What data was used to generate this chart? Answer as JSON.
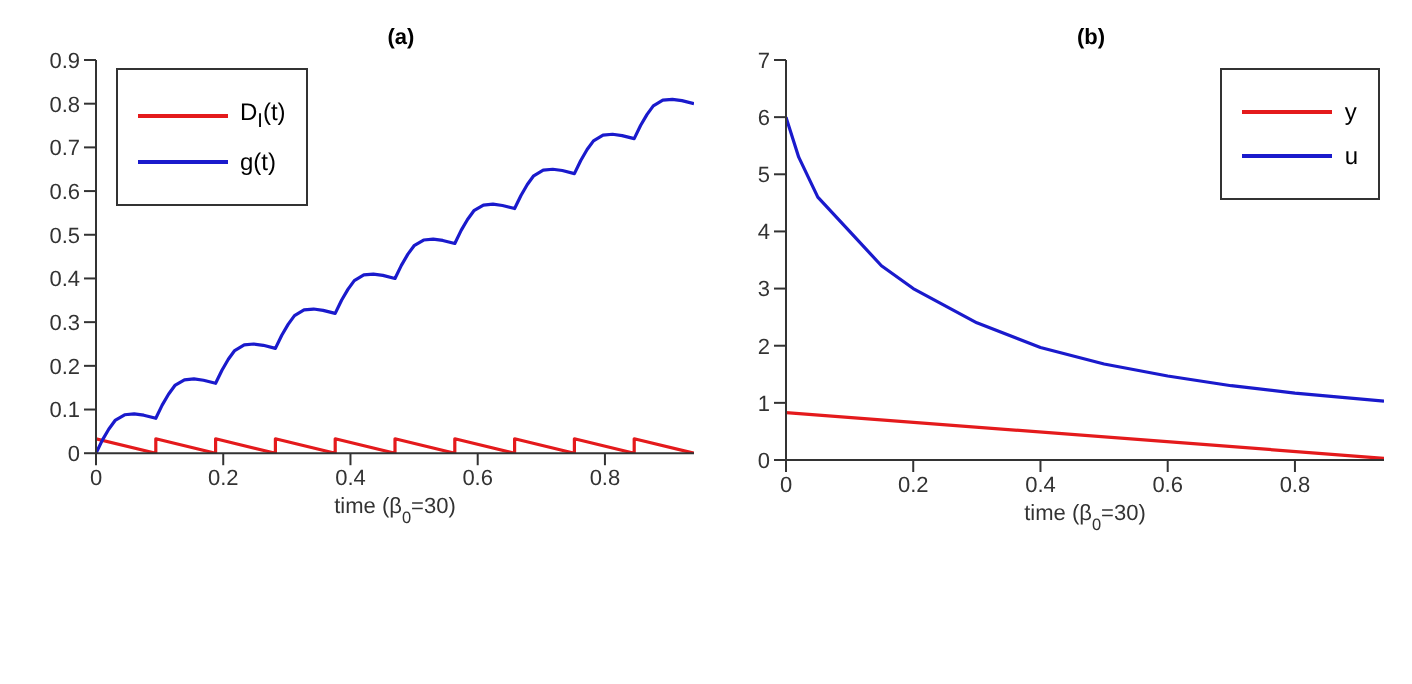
{
  "chart_data": [
    {
      "type": "line",
      "title": "(a)",
      "xlabel": "time (β$_{0}$=30)",
      "xlim": [
        0,
        0.94
      ],
      "xticks": [
        0,
        0.2,
        0.4,
        0.6,
        0.8
      ],
      "ylim": [
        0,
        0.9
      ],
      "yticks": [
        0,
        0.1,
        0.2,
        0.3,
        0.4,
        0.5,
        0.6,
        0.7,
        0.8,
        0.9
      ],
      "legend": "top left",
      "series": [
        {
          "name": "D$_{I}$(t)",
          "color": "#e41a1c",
          "x": [
            0,
            0.094,
            0.094,
            0.188,
            0.188,
            0.282,
            0.282,
            0.376,
            0.376,
            0.47,
            0.47,
            0.564,
            0.564,
            0.658,
            0.658,
            0.752,
            0.752,
            0.846,
            0.846,
            0.94
          ],
          "values": [
            0.033,
            0,
            0.033,
            0,
            0.033,
            0,
            0.033,
            0,
            0.033,
            0,
            0.033,
            0,
            0.033,
            0,
            0.033,
            0,
            0.033,
            0,
            0.033,
            0
          ]
        },
        {
          "name": "g(t)",
          "color": "#1a1acc",
          "x": [
            0,
            0.01,
            0.02,
            0.03,
            0.045,
            0.06,
            0.075,
            0.094,
            0.104,
            0.114,
            0.124,
            0.139,
            0.154,
            0.169,
            0.188,
            0.198,
            0.208,
            0.218,
            0.233,
            0.248,
            0.263,
            0.282,
            0.292,
            0.302,
            0.312,
            0.327,
            0.342,
            0.357,
            0.376,
            0.386,
            0.396,
            0.406,
            0.421,
            0.436,
            0.451,
            0.47,
            0.48,
            0.49,
            0.5,
            0.515,
            0.53,
            0.545,
            0.564,
            0.574,
            0.584,
            0.594,
            0.609,
            0.624,
            0.639,
            0.658,
            0.668,
            0.678,
            0.688,
            0.703,
            0.718,
            0.733,
            0.752,
            0.762,
            0.772,
            0.782,
            0.797,
            0.812,
            0.827,
            0.846,
            0.856,
            0.866,
            0.876,
            0.891,
            0.906,
            0.921,
            0.94
          ],
          "values": [
            0,
            0.03,
            0.055,
            0.075,
            0.088,
            0.09,
            0.087,
            0.08,
            0.11,
            0.135,
            0.155,
            0.168,
            0.17,
            0.167,
            0.16,
            0.19,
            0.215,
            0.235,
            0.248,
            0.25,
            0.247,
            0.24,
            0.27,
            0.295,
            0.315,
            0.328,
            0.33,
            0.327,
            0.32,
            0.35,
            0.375,
            0.395,
            0.408,
            0.41,
            0.407,
            0.4,
            0.43,
            0.455,
            0.475,
            0.488,
            0.49,
            0.487,
            0.48,
            0.51,
            0.535,
            0.555,
            0.568,
            0.57,
            0.567,
            0.56,
            0.59,
            0.615,
            0.635,
            0.648,
            0.65,
            0.647,
            0.64,
            0.67,
            0.695,
            0.715,
            0.728,
            0.73,
            0.727,
            0.72,
            0.75,
            0.775,
            0.795,
            0.808,
            0.81,
            0.807,
            0.8
          ]
        }
      ]
    },
    {
      "type": "line",
      "title": "(b)",
      "xlabel": "time (β$_{0}$=30)",
      "xlim": [
        0,
        0.94
      ],
      "xticks": [
        0,
        0.2,
        0.4,
        0.6,
        0.8
      ],
      "ylim": [
        0,
        7
      ],
      "yticks": [
        0,
        1,
        2,
        3,
        4,
        5,
        6,
        7
      ],
      "legend": "top right",
      "series": [
        {
          "name": "y",
          "color": "#e41a1c",
          "x": [
            0,
            0.94
          ],
          "values": [
            0.83,
            0.03
          ]
        },
        {
          "name": "u",
          "color": "#1a1acc",
          "x": [
            0,
            0.02,
            0.05,
            0.1,
            0.15,
            0.2,
            0.3,
            0.4,
            0.5,
            0.6,
            0.7,
            0.8,
            0.94
          ],
          "values": [
            6,
            5.3,
            4.6,
            4,
            3.4,
            3,
            2.4,
            1.97,
            1.68,
            1.47,
            1.3,
            1.17,
            1.03
          ]
        }
      ]
    }
  ]
}
